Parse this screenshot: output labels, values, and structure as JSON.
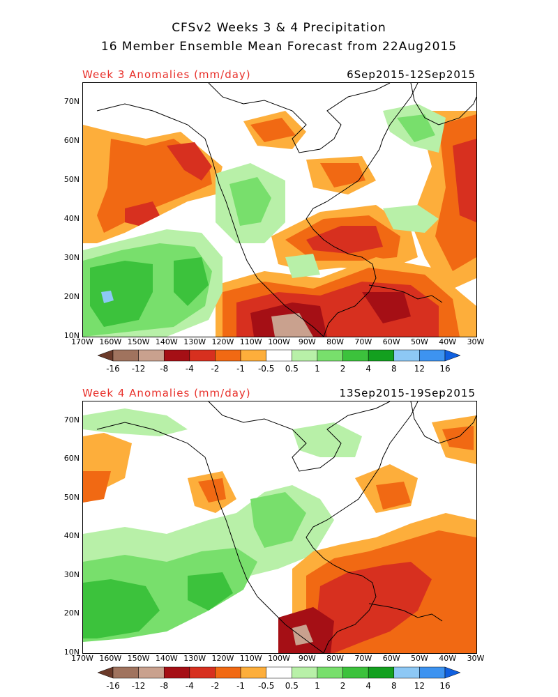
{
  "header": {
    "line1": "CFSv2 Weeks 3 & 4 Precipitation",
    "line2": "16 Member Ensemble Mean Forecast from 22Aug2015"
  },
  "panels": [
    {
      "title": "Week 3 Anomalies (mm/day)",
      "dates": "6Sep2015-12Sep2015"
    },
    {
      "title": "Week 4 Anomalies (mm/day)",
      "dates": "13Sep2015-19Sep2015"
    }
  ],
  "axes": {
    "lat_labels": [
      "70N",
      "60N",
      "50N",
      "40N",
      "30N",
      "20N",
      "10N"
    ],
    "lon_labels": [
      "170W",
      "160W",
      "150W",
      "140W",
      "130W",
      "120W",
      "110W",
      "100W",
      "90W",
      "80W",
      "70W",
      "60W",
      "50W",
      "40W",
      "30W"
    ]
  },
  "colorbar": {
    "labels": [
      "-16",
      "-12",
      "-8",
      "-4",
      "-2",
      "-1",
      "-0.5",
      "0.5",
      "1",
      "2",
      "4",
      "8",
      "12",
      "16"
    ],
    "colors": [
      "#6b3a2a",
      "#a0735e",
      "#c9a18e",
      "#a50f15",
      "#d7301f",
      "#f16913",
      "#fdae3b",
      "#ffffff",
      "#b8f0a8",
      "#78df6c",
      "#3cc23c",
      "#13a01f",
      "#8dc8f5",
      "#3d93f0",
      "#1060e0"
    ]
  }
}
